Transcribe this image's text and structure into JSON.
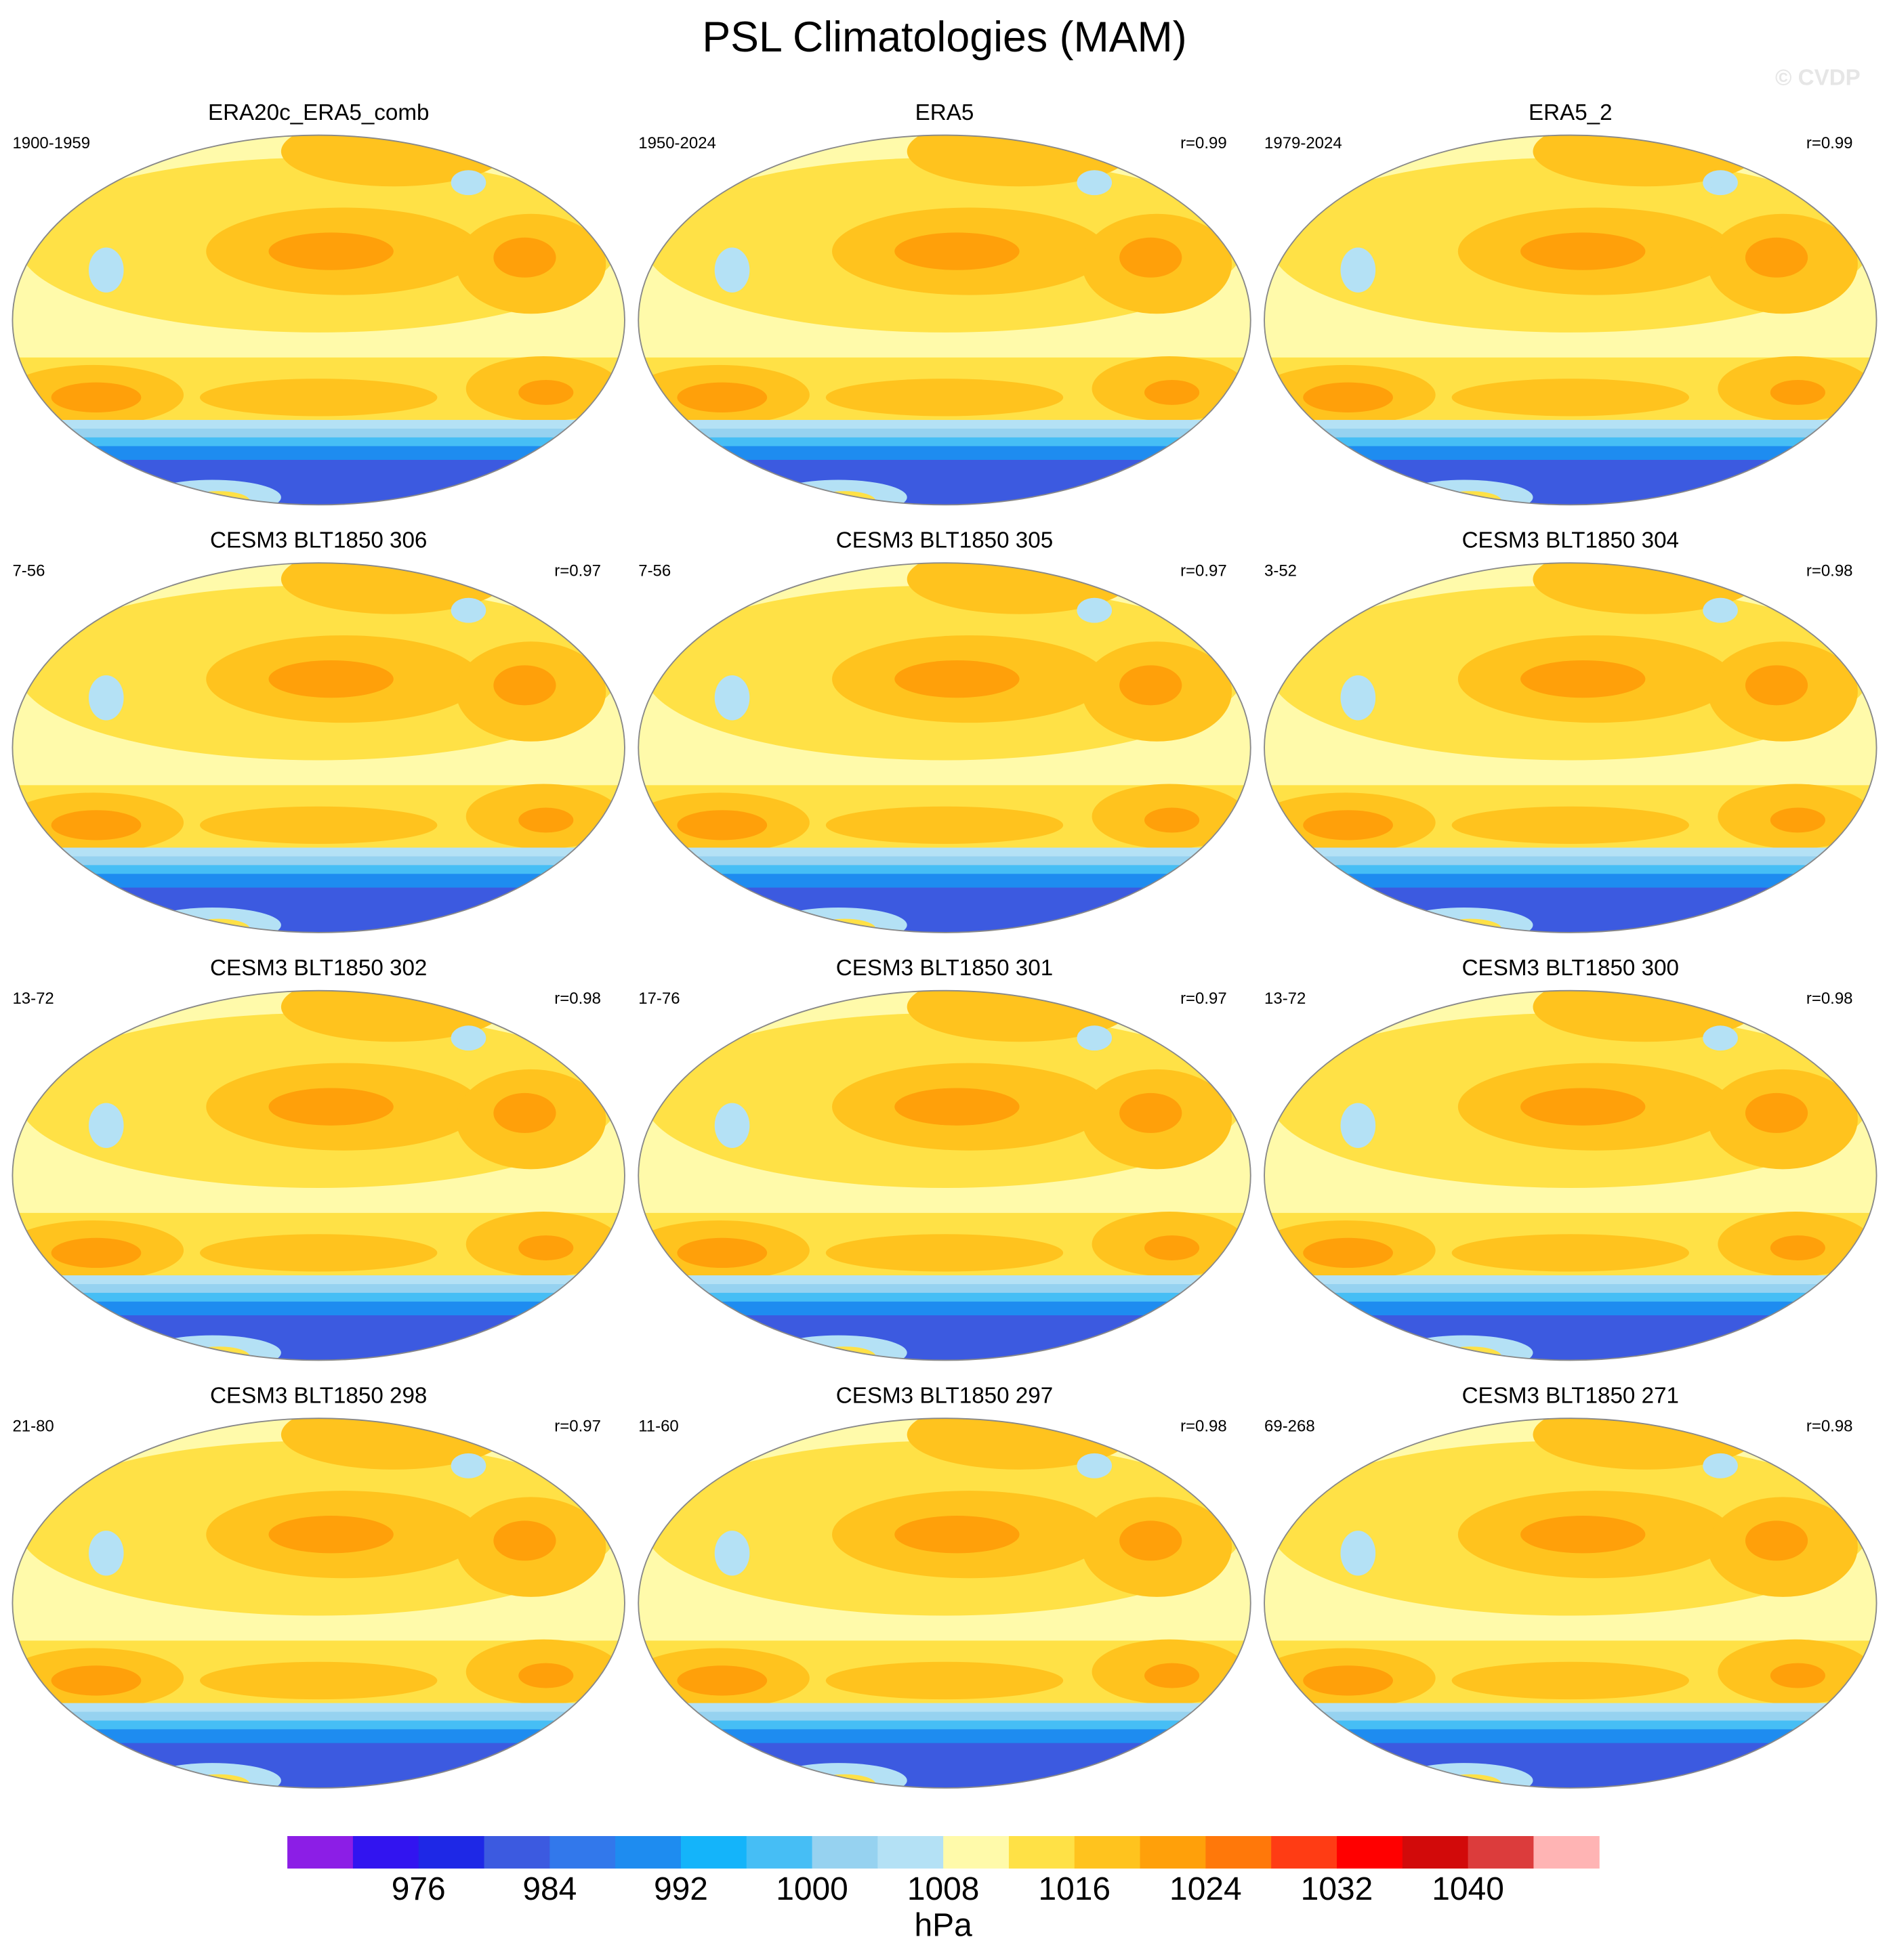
{
  "title": "PSL Climatologies (MAM)",
  "watermark": "© CVDP",
  "panels": [
    {
      "title": "ERA20c_ERA5_comb",
      "period": "1900-1959"
    },
    {
      "title": "ERA5",
      "period": "1950-2024",
      "r": "r=0.99"
    },
    {
      "title": "ERA5_2",
      "period": "1979-2024",
      "r": "r=0.99"
    },
    {
      "title": "CESM3 BLT1850 306",
      "period": "7-56",
      "r": "r=0.97"
    },
    {
      "title": "CESM3 BLT1850 305",
      "period": "7-56",
      "r": "r=0.97"
    },
    {
      "title": "CESM3 BLT1850 304",
      "period": "3-52",
      "r": "r=0.98"
    },
    {
      "title": "CESM3 BLT1850 302",
      "period": "13-72",
      "r": "r=0.98"
    },
    {
      "title": "CESM3 BLT1850 301",
      "period": "17-76",
      "r": "r=0.97"
    },
    {
      "title": "CESM3 BLT1850 300",
      "period": "13-72",
      "r": "r=0.98"
    },
    {
      "title": "CESM3 BLT1850 298",
      "period": "21-80",
      "r": "r=0.97"
    },
    {
      "title": "CESM3 BLT1850 297",
      "period": "11-60",
      "r": "r=0.98"
    },
    {
      "title": "CESM3 BLT1850 271",
      "period": "69-268",
      "r": "r=0.98"
    }
  ],
  "colorbar": {
    "lim": [
      968,
      1048
    ],
    "ticks": [
      976,
      984,
      992,
      1000,
      1008,
      1016,
      1024,
      1032,
      1040
    ],
    "unit": "hPa",
    "colors": [
      "#8c1ee6",
      "#3214f0",
      "#1e28e6",
      "#3c5ae0",
      "#3278eb",
      "#1e8cf0",
      "#14b4fa",
      "#46bef5",
      "#96d2f0",
      "#b4e1f5",
      "#fffaaa",
      "#ffe146",
      "#ffc31e",
      "#ffa00a",
      "#ff780a",
      "#ff3c14",
      "#ff0000",
      "#d20a0a",
      "#dc3c3c",
      "#ffb4b4"
    ]
  }
}
